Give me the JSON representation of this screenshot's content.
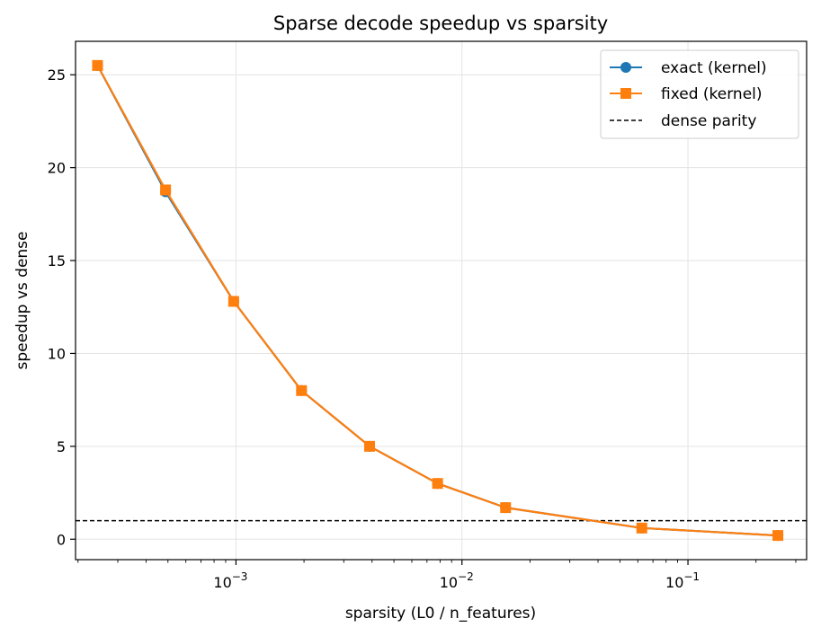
{
  "chart_data": {
    "type": "line",
    "title": "Sparse decode speedup vs sparsity",
    "xlabel": "sparsity (L0 / n_features)",
    "ylabel": "speedup vs dense",
    "xscale": "log",
    "xlim": [
      0.000195,
      0.335
    ],
    "ylim": [
      -1.1,
      26.8
    ],
    "grid": true,
    "legend_position": "top-right",
    "x_ticks": [
      {
        "value": 0.001,
        "base": "10",
        "exp": "−3"
      },
      {
        "value": 0.01,
        "base": "10",
        "exp": "−2"
      },
      {
        "value": 0.1,
        "base": "10",
        "exp": "−1"
      }
    ],
    "y_ticks": [
      {
        "value": 0,
        "label": "0"
      },
      {
        "value": 5,
        "label": "5"
      },
      {
        "value": 10,
        "label": "10"
      },
      {
        "value": 15,
        "label": "15"
      },
      {
        "value": 20,
        "label": "20"
      },
      {
        "value": 25,
        "label": "25"
      }
    ],
    "series": [
      {
        "name": "exact (kernel)",
        "color": "#1f77b4",
        "marker": "circle",
        "x": [
          0.000244,
          0.000488,
          0.000977,
          0.00195,
          0.0039,
          0.0078,
          0.0156,
          0.0625,
          0.25
        ],
        "y": [
          25.5,
          18.7,
          12.8,
          8.0,
          5.0,
          3.0,
          1.7,
          0.6,
          0.2
        ]
      },
      {
        "name": "fixed (kernel)",
        "color": "#ff7f0e",
        "marker": "square",
        "x": [
          0.000244,
          0.000488,
          0.000977,
          0.00195,
          0.0039,
          0.0078,
          0.0156,
          0.0625,
          0.25
        ],
        "y": [
          25.5,
          18.8,
          12.8,
          8.0,
          5.0,
          3.0,
          1.7,
          0.6,
          0.2
        ]
      }
    ],
    "reference_line": {
      "name": "dense parity",
      "y": 1,
      "color": "#000000",
      "style": "dashed"
    }
  }
}
